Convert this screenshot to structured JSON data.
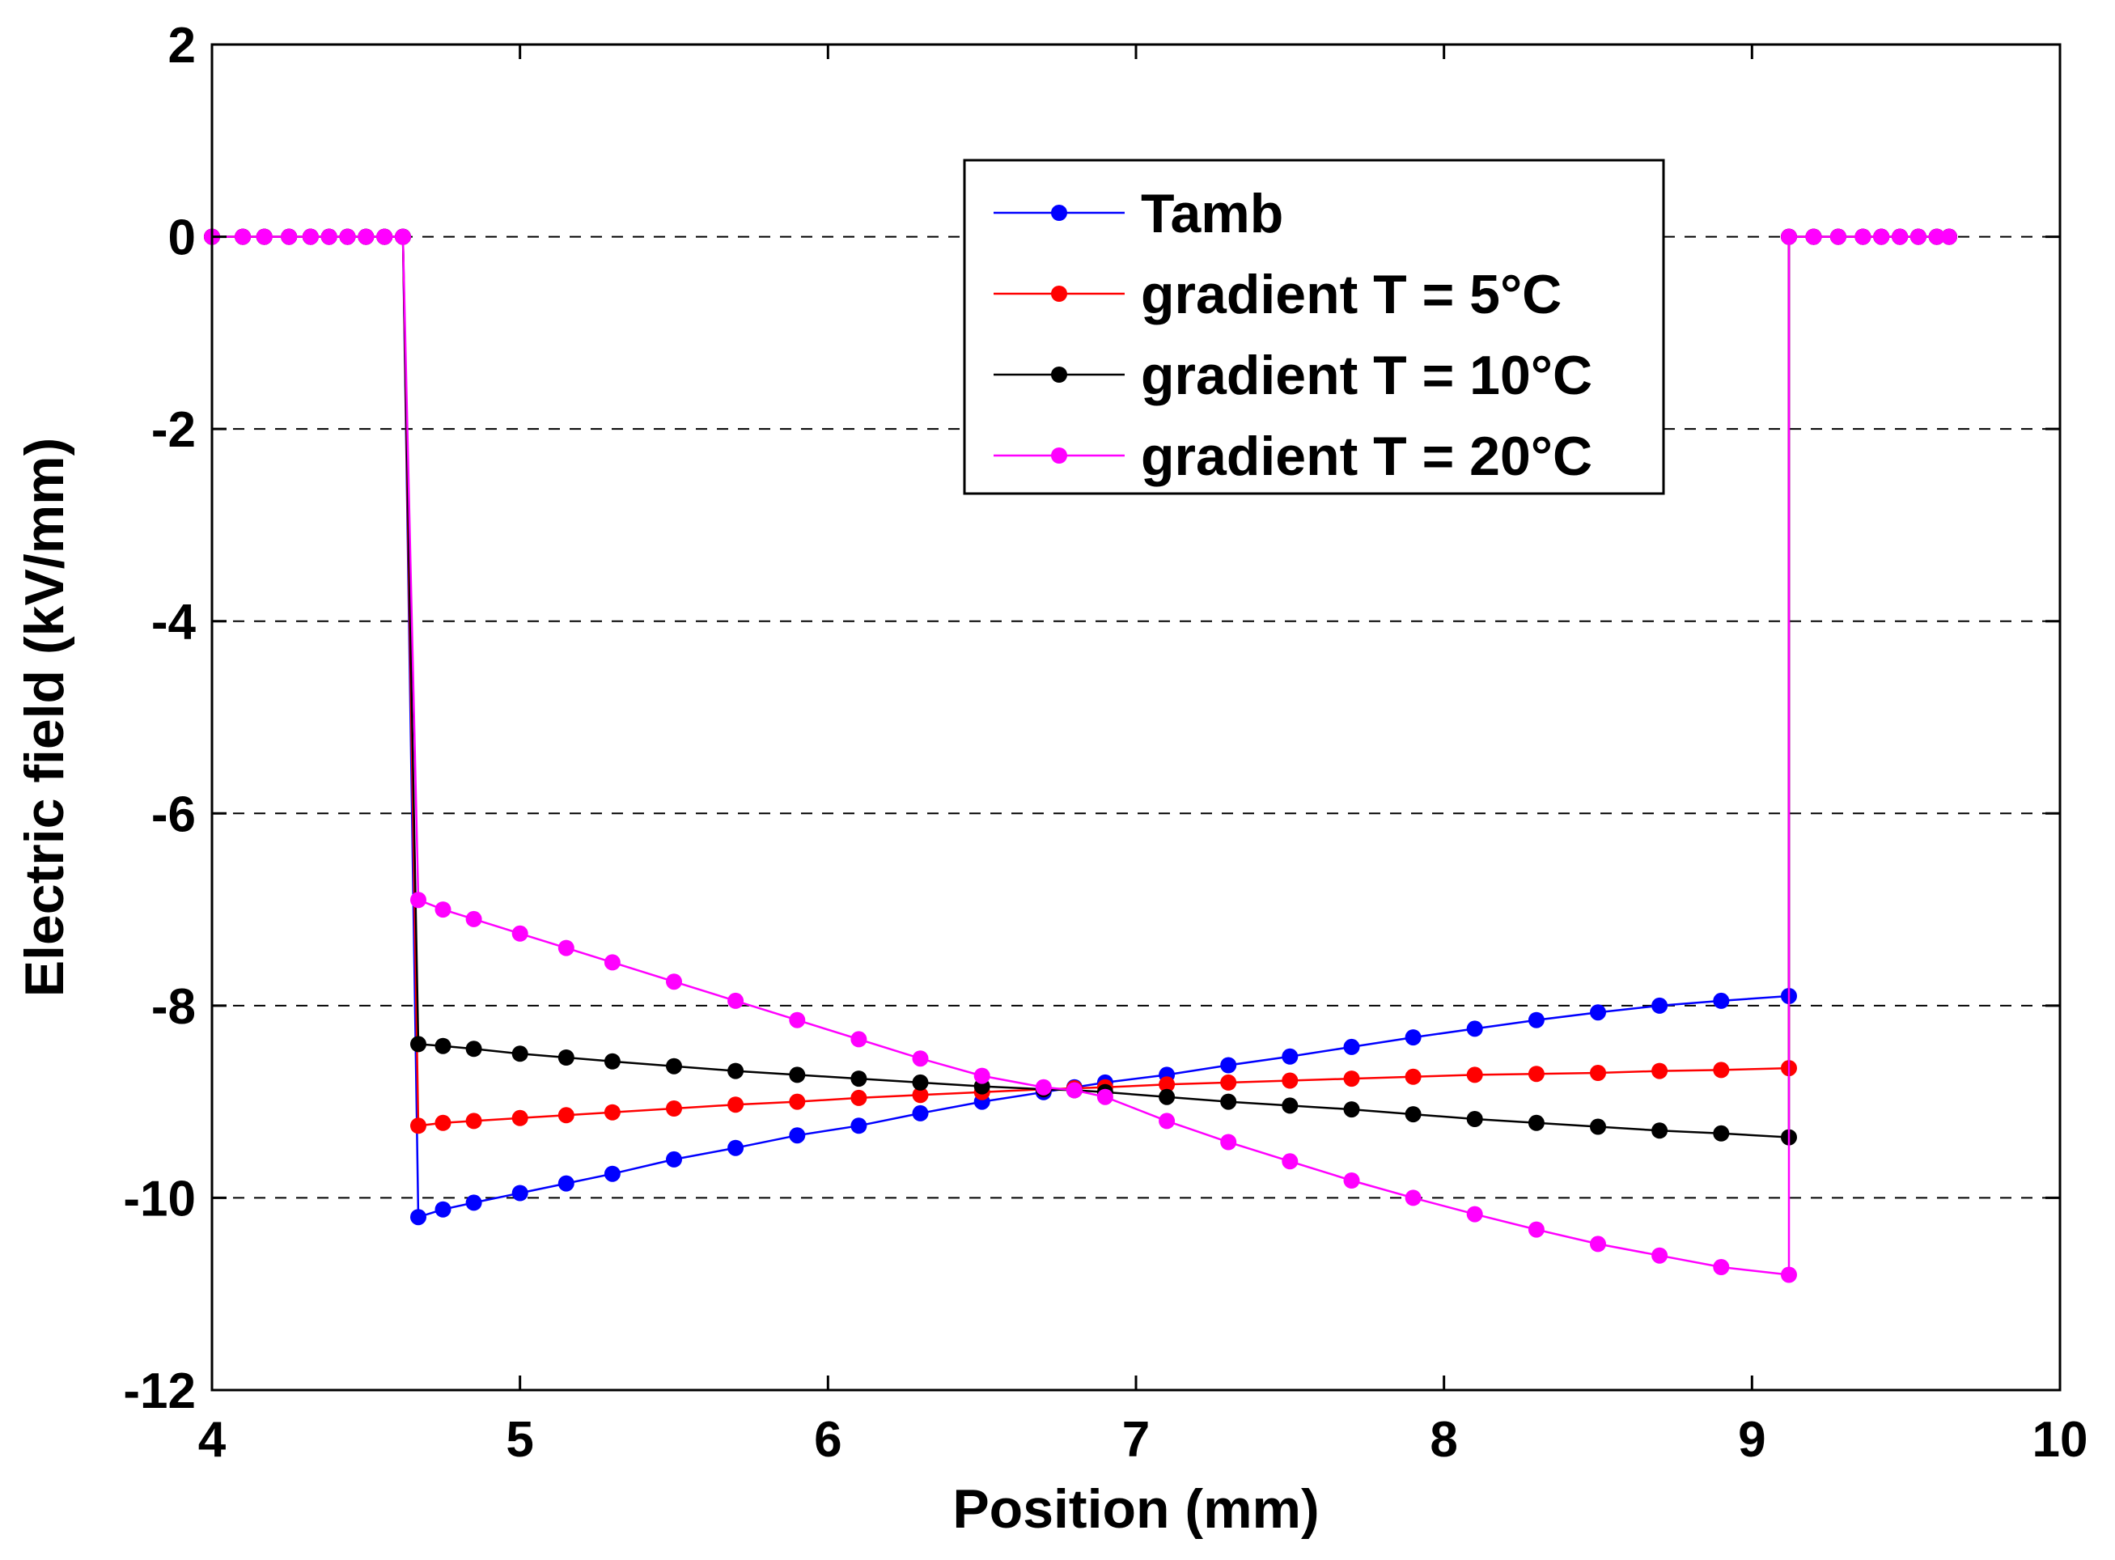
{
  "chart_data": {
    "type": "line",
    "title": "",
    "xlabel": "Position (mm)",
    "ylabel": "Electric field (kV/mm)",
    "xlim": [
      4,
      10
    ],
    "ylim": [
      -12,
      2
    ],
    "xticks": [
      4,
      5,
      6,
      7,
      8,
      9,
      10
    ],
    "yticks": [
      -12,
      -10,
      -8,
      -6,
      -4,
      -2,
      0,
      2
    ],
    "xtick_labels": [
      "4",
      "5",
      "6",
      "7",
      "8",
      "9",
      "10"
    ],
    "ytick_labels": [
      "-12",
      "-10",
      "-8",
      "-6",
      "-4",
      "-2",
      "0",
      "2"
    ],
    "grid": "dashed horizontal",
    "legend_position": "top-center",
    "outside_region": {
      "left_x": [
        4.0,
        4.1,
        4.17,
        4.25,
        4.32,
        4.38,
        4.44,
        4.5,
        4.56,
        4.62
      ],
      "right_x": [
        9.12,
        9.2,
        9.28,
        9.36,
        9.42,
        9.48,
        9.54,
        9.6,
        9.64
      ],
      "value": 0
    },
    "dielectric_x": [
      4.67,
      4.75,
      4.85,
      5.0,
      5.15,
      5.3,
      5.5,
      5.7,
      5.9,
      6.1,
      6.3,
      6.5,
      6.7,
      6.8,
      6.9,
      7.1,
      7.3,
      7.5,
      7.7,
      7.9,
      8.1,
      8.3,
      8.5,
      8.7,
      8.9,
      9.12
    ],
    "series": [
      {
        "name": "Tamb",
        "color": "#0000ff",
        "values": [
          -10.2,
          -10.12,
          -10.05,
          -9.95,
          -9.85,
          -9.75,
          -9.6,
          -9.48,
          -9.35,
          -9.25,
          -9.12,
          -9.0,
          -8.9,
          -8.85,
          -8.8,
          -8.72,
          -8.62,
          -8.53,
          -8.43,
          -8.33,
          -8.24,
          -8.15,
          -8.07,
          -8.0,
          -7.95,
          -7.9
        ]
      },
      {
        "name": "gradient T = 5°C",
        "color": "#ff0000",
        "values": [
          -9.25,
          -9.22,
          -9.2,
          -9.17,
          -9.14,
          -9.11,
          -9.07,
          -9.03,
          -9.0,
          -8.96,
          -8.93,
          -8.9,
          -8.87,
          -8.86,
          -8.85,
          -8.82,
          -8.8,
          -8.78,
          -8.76,
          -8.74,
          -8.72,
          -8.71,
          -8.7,
          -8.68,
          -8.67,
          -8.65
        ]
      },
      {
        "name": "gradient T = 10°C",
        "color": "#000000",
        "values": [
          -8.4,
          -8.42,
          -8.45,
          -8.5,
          -8.54,
          -8.58,
          -8.63,
          -8.68,
          -8.72,
          -8.76,
          -8.8,
          -8.84,
          -8.87,
          -8.88,
          -8.9,
          -8.95,
          -9.0,
          -9.04,
          -9.08,
          -9.13,
          -9.18,
          -9.22,
          -9.26,
          -9.3,
          -9.33,
          -9.37
        ]
      },
      {
        "name": "gradient T = 20°C",
        "color": "#ff00ff",
        "values": [
          -6.9,
          -7.0,
          -7.1,
          -7.25,
          -7.4,
          -7.55,
          -7.75,
          -7.95,
          -8.15,
          -8.35,
          -8.55,
          -8.73,
          -8.85,
          -8.88,
          -8.95,
          -9.2,
          -9.42,
          -9.62,
          -9.82,
          -10.0,
          -10.17,
          -10.33,
          -10.48,
          -10.6,
          -10.72,
          -10.8
        ]
      }
    ]
  }
}
